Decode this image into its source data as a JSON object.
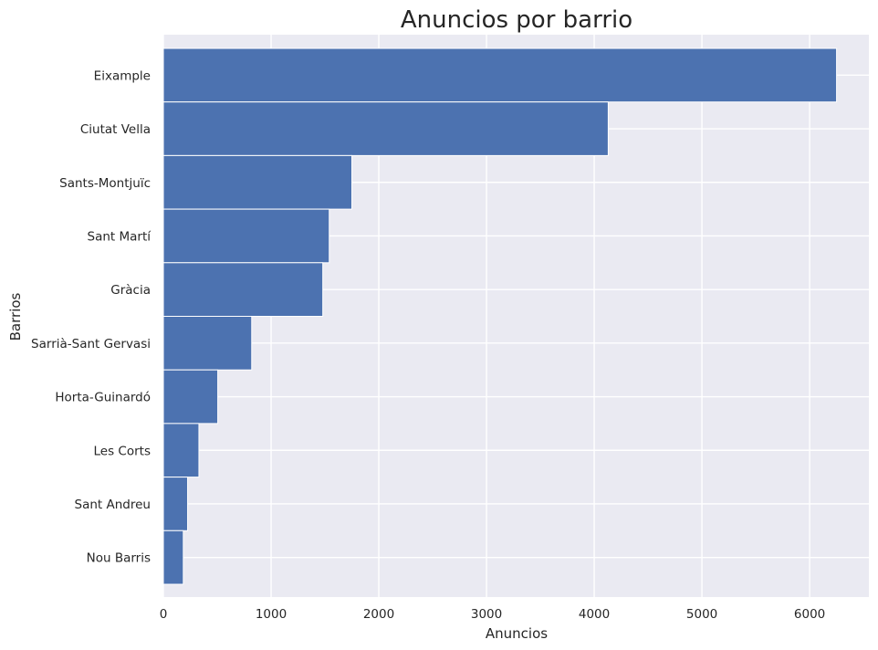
{
  "chart_data": {
    "type": "bar",
    "orientation": "horizontal",
    "title": "Anuncios por barrio",
    "xlabel": "Anuncios",
    "ylabel": "Barrios",
    "categories": [
      "Eixample",
      "Ciutat Vella",
      "Sants-Montjuïc",
      "Sant Martí",
      "Gràcia",
      "Sarrià-Sant Gervasi",
      "Horta-Guinardó",
      "Les Corts",
      "Sant Andreu",
      "Nou Barris"
    ],
    "values": [
      6250,
      4130,
      1750,
      1540,
      1480,
      820,
      505,
      330,
      225,
      185
    ],
    "xlim": [
      0,
      6550
    ],
    "xticks": [
      0,
      1000,
      2000,
      3000,
      4000,
      5000,
      6000
    ],
    "grid": true,
    "colors": {
      "bar": "#4c72b0",
      "background": "#eaeaf2",
      "grid": "#ffffff"
    }
  }
}
